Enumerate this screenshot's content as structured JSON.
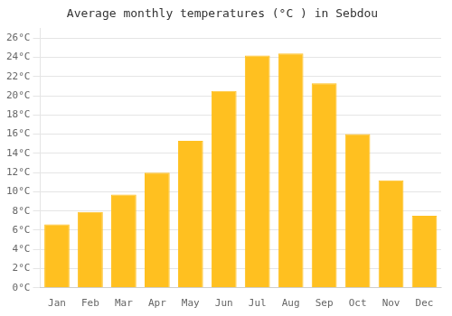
{
  "chart_data": {
    "type": "bar",
    "title": "Average monthly temperatures (°C ) in Sebdou",
    "categories": [
      "Jan",
      "Feb",
      "Mar",
      "Apr",
      "May",
      "Jun",
      "Jul",
      "Aug",
      "Sep",
      "Oct",
      "Nov",
      "Dec"
    ],
    "values": [
      6.6,
      7.9,
      9.7,
      12.0,
      15.3,
      20.5,
      24.2,
      24.4,
      21.3,
      16.0,
      11.2,
      7.5
    ],
    "color": "#FFC020",
    "ylim": [
      0,
      27
    ],
    "yticks": [
      {
        "value": 0,
        "label": "0°C"
      },
      {
        "value": 2,
        "label": "2°C"
      },
      {
        "value": 4,
        "label": "4°C"
      },
      {
        "value": 6,
        "label": "6°C"
      },
      {
        "value": 8,
        "label": "8°C"
      },
      {
        "value": 10,
        "label": "10°C"
      },
      {
        "value": 12,
        "label": "12°C"
      },
      {
        "value": 14,
        "label": "14°C"
      },
      {
        "value": 16,
        "label": "16°C"
      },
      {
        "value": 18,
        "label": "18°C"
      },
      {
        "value": 20,
        "label": "20°C"
      },
      {
        "value": 22,
        "label": "22°C"
      },
      {
        "value": 24,
        "label": "24°C"
      },
      {
        "value": 26,
        "label": "26°C"
      }
    ],
    "grid": true
  }
}
